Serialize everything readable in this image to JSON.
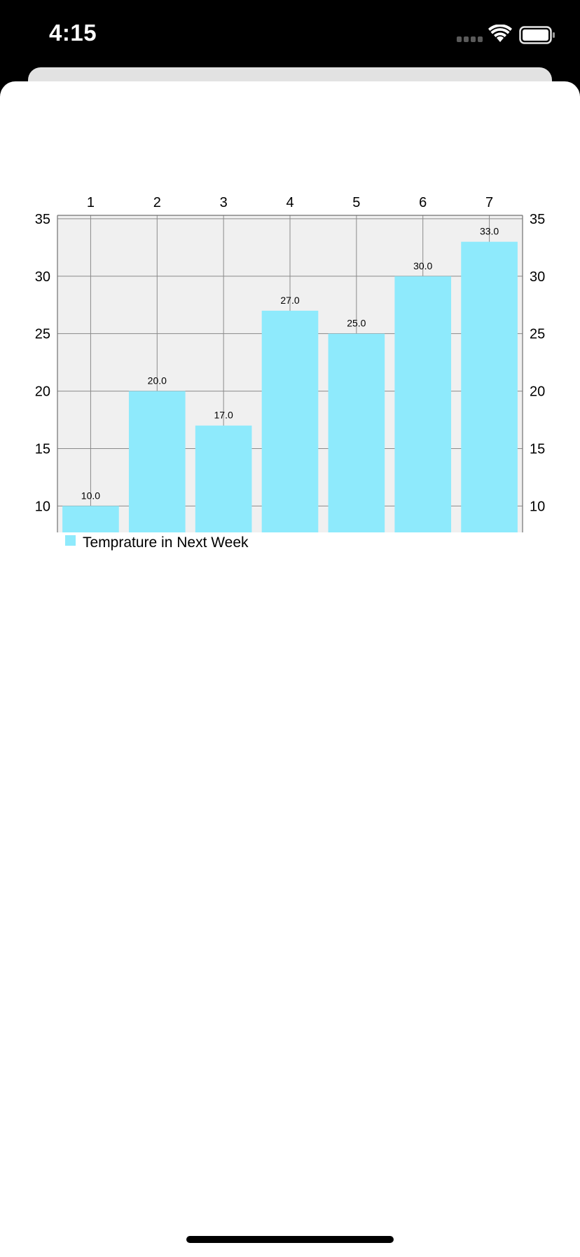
{
  "status_bar": {
    "time": "4:15"
  },
  "icons": {
    "signal": "cellular-signal-icon",
    "wifi": "wifi-icon",
    "battery": "battery-icon"
  },
  "chart_data": {
    "type": "bar",
    "categories": [
      "1",
      "2",
      "3",
      "4",
      "5",
      "6",
      "7"
    ],
    "series": [
      {
        "name": "Temprature in Next Week",
        "values": [
          10.0,
          20.0,
          17.0,
          27.0,
          25.0,
          30.0,
          33.0
        ],
        "value_labels": [
          "10.0",
          "20.0",
          "17.0",
          "27.0",
          "25.0",
          "30.0",
          "33.0"
        ],
        "color": "#8eeafc"
      }
    ],
    "ylim": [
      7.7,
      35.3
    ],
    "yticks": [
      10,
      15,
      20,
      25,
      30,
      35
    ],
    "y_axis_sides": [
      "left",
      "right"
    ],
    "x_axis_position": "top",
    "grid": true,
    "plot_background": "#f0f0f0",
    "legend": "bottom-left"
  }
}
